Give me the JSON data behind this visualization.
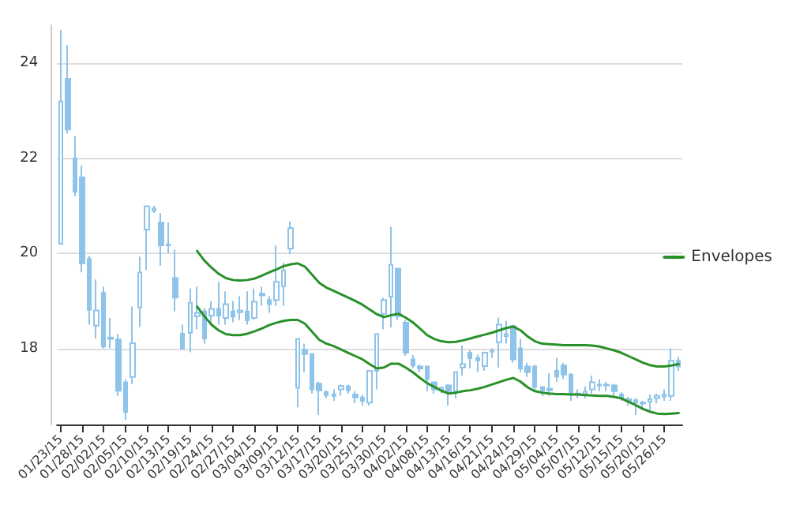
{
  "chart_data": {
    "type": "candlestick",
    "categories": [
      "01/23/15",
      null,
      null,
      "01/28/15",
      null,
      null,
      "02/02/15",
      null,
      null,
      "02/05/15",
      null,
      null,
      "02/10/15",
      null,
      null,
      "02/13/15",
      null,
      null,
      "02/19/15",
      null,
      null,
      "02/24/15",
      null,
      null,
      "02/27/15",
      null,
      null,
      "03/04/15",
      null,
      null,
      "03/09/15",
      null,
      null,
      "03/12/15",
      null,
      null,
      "03/17/15",
      null,
      null,
      "03/20/15",
      null,
      null,
      "03/25/15",
      null,
      null,
      "03/30/15",
      null,
      null,
      "04/02/15",
      null,
      null,
      "04/08/15",
      null,
      null,
      "04/13/15",
      null,
      null,
      "04/16/15",
      null,
      null,
      "04/21/15",
      null,
      null,
      "04/24/15",
      null,
      null,
      "04/29/15",
      null,
      null,
      "05/04/15",
      null,
      null,
      "05/07/15",
      null,
      null,
      "05/12/15",
      null,
      null,
      "05/15/15",
      null,
      null,
      "05/20/15",
      null,
      null,
      "05/26/15",
      null,
      null
    ],
    "series": [
      {
        "type": "candlestick",
        "color": "#8ec3ea",
        "ohlc": [
          [
            20.2,
            24.7,
            20.2,
            23.2
          ],
          [
            23.67,
            24.38,
            22.52,
            22.61
          ],
          [
            22.0,
            22.47,
            21.2,
            21.3
          ],
          [
            21.6,
            21.85,
            19.6,
            19.79
          ],
          [
            19.88,
            19.95,
            18.5,
            18.81
          ],
          [
            18.48,
            19.45,
            18.21,
            18.8
          ],
          [
            19.17,
            19.3,
            18.0,
            18.04
          ],
          [
            18.2,
            18.64,
            18.0,
            18.23
          ],
          [
            18.19,
            18.3,
            17.0,
            17.11
          ],
          [
            17.29,
            17.35,
            16.5,
            16.66
          ],
          [
            17.4,
            18.88,
            17.25,
            18.11
          ],
          [
            18.86,
            19.93,
            18.45,
            19.6
          ],
          [
            20.5,
            21.0,
            19.65,
            20.99
          ],
          [
            20.9,
            21.0,
            20.85,
            20.94
          ],
          [
            20.65,
            20.85,
            19.74,
            20.17
          ],
          [
            20.19,
            20.65,
            20.0,
            20.17
          ],
          [
            19.48,
            20.08,
            18.78,
            19.07
          ],
          [
            18.31,
            18.5,
            17.97,
            18.0
          ],
          [
            18.33,
            19.26,
            17.92,
            18.96
          ],
          [
            18.68,
            19.3,
            18.4,
            18.75
          ],
          [
            18.78,
            18.85,
            18.1,
            18.21
          ],
          [
            18.69,
            19.0,
            18.5,
            18.83
          ],
          [
            18.83,
            19.4,
            18.5,
            18.69
          ],
          [
            18.64,
            19.2,
            18.5,
            18.93
          ],
          [
            18.78,
            19.0,
            18.55,
            18.67
          ],
          [
            18.76,
            19.1,
            18.6,
            18.8
          ],
          [
            18.78,
            19.2,
            18.5,
            18.59
          ],
          [
            18.64,
            19.26,
            18.6,
            18.98
          ],
          [
            19.15,
            19.3,
            18.9,
            19.12
          ],
          [
            19.02,
            19.1,
            18.75,
            18.93
          ],
          [
            19.02,
            20.17,
            18.9,
            19.4
          ],
          [
            19.31,
            19.8,
            18.9,
            19.64
          ],
          [
            20.1,
            20.67,
            19.98,
            20.53
          ],
          [
            17.17,
            18.2,
            16.76,
            18.2
          ],
          [
            17.97,
            18.1,
            17.5,
            17.88
          ],
          [
            17.88,
            17.9,
            17.05,
            17.14
          ],
          [
            17.26,
            17.3,
            16.6,
            17.12
          ],
          [
            17.08,
            17.12,
            16.95,
            17.02
          ],
          [
            17.0,
            17.14,
            16.9,
            17.03
          ],
          [
            17.14,
            17.24,
            17.0,
            17.21
          ],
          [
            17.2,
            17.24,
            17.05,
            17.12
          ],
          [
            17.03,
            17.1,
            16.85,
            16.97
          ],
          [
            16.97,
            17.03,
            16.8,
            16.9
          ],
          [
            16.86,
            17.53,
            16.8,
            17.53
          ],
          [
            17.53,
            18.3,
            17.14,
            18.3
          ],
          [
            18.73,
            19.07,
            18.4,
            19.02
          ],
          [
            19.09,
            20.56,
            18.44,
            19.76
          ],
          [
            19.68,
            19.7,
            18.6,
            18.68
          ],
          [
            18.54,
            18.6,
            17.85,
            17.91
          ],
          [
            17.77,
            17.86,
            17.58,
            17.64
          ],
          [
            17.62,
            17.66,
            17.5,
            17.58
          ],
          [
            17.62,
            17.62,
            17.1,
            17.36
          ],
          [
            17.29,
            17.3,
            17.05,
            17.14
          ],
          [
            17.12,
            17.2,
            17.05,
            17.17
          ],
          [
            17.22,
            17.25,
            16.8,
            17.1
          ],
          [
            17.1,
            17.5,
            16.95,
            17.5
          ],
          [
            17.6,
            18.06,
            17.43,
            17.67
          ],
          [
            17.91,
            17.96,
            17.58,
            17.8
          ],
          [
            17.8,
            17.87,
            17.5,
            17.75
          ],
          [
            17.63,
            17.93,
            17.53,
            17.91
          ],
          [
            17.93,
            18.0,
            17.8,
            17.95
          ],
          [
            18.13,
            18.65,
            17.6,
            18.5
          ],
          [
            18.26,
            18.58,
            18.1,
            18.3
          ],
          [
            18.47,
            18.5,
            17.7,
            17.77
          ],
          [
            18.0,
            18.2,
            17.5,
            17.58
          ],
          [
            17.62,
            17.7,
            17.4,
            17.5
          ],
          [
            17.62,
            17.65,
            17.1,
            17.19
          ],
          [
            17.19,
            17.2,
            17.0,
            17.12
          ],
          [
            17.12,
            17.48,
            17.0,
            17.15
          ],
          [
            17.53,
            17.8,
            17.3,
            17.41
          ],
          [
            17.64,
            17.7,
            17.35,
            17.45
          ],
          [
            17.45,
            17.48,
            16.9,
            17.03
          ],
          [
            17.03,
            17.14,
            16.95,
            17.05
          ],
          [
            17.04,
            17.2,
            16.95,
            17.09
          ],
          [
            17.14,
            17.43,
            17.05,
            17.29
          ],
          [
            17.24,
            17.35,
            17.1,
            17.22
          ],
          [
            17.22,
            17.3,
            17.1,
            17.24
          ],
          [
            17.22,
            17.25,
            17.0,
            17.1
          ],
          [
            17.03,
            17.08,
            16.9,
            16.95
          ],
          [
            16.93,
            16.98,
            16.8,
            16.88
          ],
          [
            16.91,
            16.95,
            16.6,
            16.86
          ],
          [
            16.84,
            16.9,
            16.7,
            16.86
          ],
          [
            16.88,
            17.03,
            16.7,
            16.93
          ],
          [
            16.95,
            17.05,
            16.85,
            17.0
          ],
          [
            16.99,
            17.14,
            16.9,
            17.03
          ],
          [
            17.0,
            18.0,
            16.9,
            17.74
          ],
          [
            17.74,
            17.82,
            17.53,
            17.62
          ]
        ]
      },
      {
        "type": "line",
        "name": "Envelopes",
        "color": "#2a912a",
        "values": [
          null,
          null,
          null,
          null,
          null,
          null,
          null,
          null,
          null,
          null,
          null,
          null,
          null,
          null,
          null,
          null,
          null,
          null,
          null,
          20.05,
          19.85,
          19.7,
          19.57,
          19.48,
          19.44,
          19.43,
          19.44,
          19.47,
          19.53,
          19.6,
          19.66,
          19.73,
          19.77,
          19.79,
          19.72,
          19.55,
          19.38,
          19.28,
          19.21,
          19.14,
          19.07,
          19.0,
          18.92,
          18.82,
          18.72,
          18.66,
          18.7,
          18.73,
          18.65,
          18.55,
          18.42,
          18.28,
          18.2,
          18.15,
          18.13,
          18.14,
          18.17,
          18.21,
          18.25,
          18.29,
          18.33,
          18.38,
          18.43,
          18.46,
          18.38,
          18.25,
          18.15,
          18.1,
          18.09,
          18.08,
          18.07,
          18.07,
          18.07,
          18.07,
          18.06,
          18.04,
          18.0,
          17.96,
          17.91,
          17.84,
          17.77,
          17.7,
          17.65,
          17.62,
          17.62,
          17.64,
          17.67
        ]
      },
      {
        "type": "line",
        "color": "#2a912a",
        "values": [
          null,
          null,
          null,
          null,
          null,
          null,
          null,
          null,
          null,
          null,
          null,
          null,
          null,
          null,
          null,
          null,
          null,
          null,
          null,
          18.88,
          18.68,
          18.5,
          18.38,
          18.3,
          18.28,
          18.28,
          18.31,
          18.36,
          18.42,
          18.49,
          18.54,
          18.58,
          18.6,
          18.6,
          18.52,
          18.35,
          18.18,
          18.1,
          18.05,
          17.98,
          17.91,
          17.84,
          17.77,
          17.67,
          17.58,
          17.6,
          17.68,
          17.68,
          17.6,
          17.5,
          17.38,
          17.27,
          17.19,
          17.11,
          17.05,
          17.07,
          17.1,
          17.12,
          17.15,
          17.19,
          17.24,
          17.29,
          17.34,
          17.38,
          17.3,
          17.18,
          17.1,
          17.07,
          17.05,
          17.04,
          17.04,
          17.03,
          17.03,
          17.02,
          17.01,
          17.0,
          17.0,
          16.98,
          16.95,
          16.88,
          16.81,
          16.73,
          16.67,
          16.63,
          16.62,
          16.63,
          16.64
        ]
      }
    ],
    "ylim": [
      16.4,
      24.8
    ],
    "yticks": [
      18,
      20,
      22,
      24
    ],
    "grid": "y",
    "legend": "right",
    "marker": "none",
    "line_style": "solid"
  }
}
